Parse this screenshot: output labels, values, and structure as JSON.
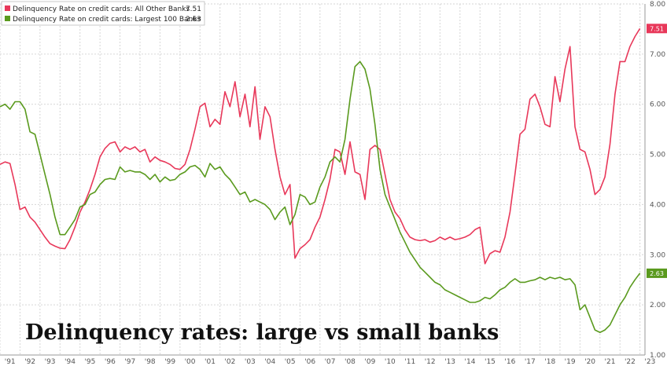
{
  "chart_data": {
    "type": "line",
    "title": "Delinquency rates: large vs small banks",
    "y_axis": {
      "range": [
        1.0,
        8.0
      ],
      "ticks": [
        "1.00",
        "2.00",
        "3.00",
        "4.00",
        "5.00",
        "6.00",
        "7.00",
        "8.00"
      ],
      "position": "right"
    },
    "x_axis": {
      "range": [
        1991.0,
        2023.25
      ],
      "ticks": [
        "'91",
        "'92",
        "'93",
        "'94",
        "'95",
        "'96",
        "'97",
        "'98",
        "'99",
        "'00",
        "'01",
        "'02",
        "'03",
        "'04",
        "'05",
        "'06",
        "'07",
        "'08",
        "'09",
        "'10",
        "'11",
        "'12",
        "'13",
        "'14",
        "'15",
        "'16",
        "'17",
        "'18",
        "'19",
        "'20",
        "'21",
        "'22",
        "'23"
      ]
    },
    "grid": true,
    "legend_position": "top-left",
    "series": [
      {
        "name": "Delinquency Rate on credit cards: All Other Banks",
        "last_value": "7.51",
        "color": "#e8385a",
        "points": [
          [
            1991.0,
            4.8
          ],
          [
            1991.25,
            4.85
          ],
          [
            1991.5,
            4.82
          ],
          [
            1991.75,
            4.4
          ],
          [
            1992.0,
            3.9
          ],
          [
            1992.25,
            3.95
          ],
          [
            1992.5,
            3.75
          ],
          [
            1992.75,
            3.65
          ],
          [
            1993.0,
            3.5
          ],
          [
            1993.25,
            3.35
          ],
          [
            1993.5,
            3.22
          ],
          [
            1993.75,
            3.17
          ],
          [
            1994.0,
            3.13
          ],
          [
            1994.25,
            3.12
          ],
          [
            1994.5,
            3.3
          ],
          [
            1994.75,
            3.55
          ],
          [
            1995.0,
            3.85
          ],
          [
            1995.25,
            4.05
          ],
          [
            1995.5,
            4.3
          ],
          [
            1995.75,
            4.6
          ],
          [
            1996.0,
            4.95
          ],
          [
            1996.25,
            5.12
          ],
          [
            1996.5,
            5.22
          ],
          [
            1996.75,
            5.25
          ],
          [
            1997.0,
            5.05
          ],
          [
            1997.25,
            5.15
          ],
          [
            1997.5,
            5.1
          ],
          [
            1997.75,
            5.15
          ],
          [
            1998.0,
            5.05
          ],
          [
            1998.25,
            5.1
          ],
          [
            1998.5,
            4.85
          ],
          [
            1998.75,
            4.95
          ],
          [
            1999.0,
            4.88
          ],
          [
            1999.25,
            4.85
          ],
          [
            1999.5,
            4.8
          ],
          [
            1999.75,
            4.72
          ],
          [
            2000.0,
            4.7
          ],
          [
            2000.25,
            4.8
          ],
          [
            2000.5,
            5.1
          ],
          [
            2000.75,
            5.5
          ],
          [
            2001.0,
            5.95
          ],
          [
            2001.25,
            6.02
          ],
          [
            2001.5,
            5.55
          ],
          [
            2001.75,
            5.7
          ],
          [
            2002.0,
            5.6
          ],
          [
            2002.25,
            6.25
          ],
          [
            2002.5,
            5.95
          ],
          [
            2002.75,
            6.45
          ],
          [
            2003.0,
            5.75
          ],
          [
            2003.25,
            6.2
          ],
          [
            2003.5,
            5.55
          ],
          [
            2003.75,
            6.35
          ],
          [
            2004.0,
            5.3
          ],
          [
            2004.25,
            5.95
          ],
          [
            2004.5,
            5.75
          ],
          [
            2004.75,
            5.1
          ],
          [
            2005.0,
            4.55
          ],
          [
            2005.25,
            4.2
          ],
          [
            2005.5,
            4.4
          ],
          [
            2005.75,
            2.93
          ],
          [
            2006.0,
            3.12
          ],
          [
            2006.25,
            3.2
          ],
          [
            2006.5,
            3.3
          ],
          [
            2006.75,
            3.55
          ],
          [
            2007.0,
            3.75
          ],
          [
            2007.25,
            4.1
          ],
          [
            2007.5,
            4.5
          ],
          [
            2007.75,
            5.1
          ],
          [
            2008.0,
            5.05
          ],
          [
            2008.25,
            4.6
          ],
          [
            2008.5,
            5.25
          ],
          [
            2008.75,
            4.65
          ],
          [
            2009.0,
            4.6
          ],
          [
            2009.25,
            4.1
          ],
          [
            2009.5,
            5.1
          ],
          [
            2009.75,
            5.18
          ],
          [
            2010.0,
            5.1
          ],
          [
            2010.25,
            4.6
          ],
          [
            2010.5,
            4.1
          ],
          [
            2010.75,
            3.85
          ],
          [
            2011.0,
            3.72
          ],
          [
            2011.25,
            3.5
          ],
          [
            2011.5,
            3.35
          ],
          [
            2011.75,
            3.3
          ],
          [
            2012.0,
            3.28
          ],
          [
            2012.25,
            3.3
          ],
          [
            2012.5,
            3.25
          ],
          [
            2012.75,
            3.28
          ],
          [
            2013.0,
            3.35
          ],
          [
            2013.25,
            3.3
          ],
          [
            2013.5,
            3.35
          ],
          [
            2013.75,
            3.3
          ],
          [
            2014.0,
            3.32
          ],
          [
            2014.25,
            3.35
          ],
          [
            2014.5,
            3.4
          ],
          [
            2014.75,
            3.5
          ],
          [
            2015.0,
            3.55
          ],
          [
            2015.25,
            2.82
          ],
          [
            2015.5,
            3.02
          ],
          [
            2015.75,
            3.08
          ],
          [
            2016.0,
            3.05
          ],
          [
            2016.25,
            3.35
          ],
          [
            2016.5,
            3.85
          ],
          [
            2016.75,
            4.6
          ],
          [
            2017.0,
            5.4
          ],
          [
            2017.25,
            5.5
          ],
          [
            2017.5,
            6.1
          ],
          [
            2017.75,
            6.2
          ],
          [
            2018.0,
            5.95
          ],
          [
            2018.25,
            5.6
          ],
          [
            2018.5,
            5.55
          ],
          [
            2018.75,
            6.55
          ],
          [
            2019.0,
            6.05
          ],
          [
            2019.25,
            6.7
          ],
          [
            2019.5,
            7.15
          ],
          [
            2019.75,
            5.55
          ],
          [
            2020.0,
            5.1
          ],
          [
            2020.25,
            5.05
          ],
          [
            2020.5,
            4.7
          ],
          [
            2020.75,
            4.2
          ],
          [
            2021.0,
            4.3
          ],
          [
            2021.25,
            4.55
          ],
          [
            2021.5,
            5.2
          ],
          [
            2021.75,
            6.2
          ],
          [
            2022.0,
            6.85
          ],
          [
            2022.25,
            6.85
          ],
          [
            2022.5,
            7.15
          ],
          [
            2022.75,
            7.35
          ],
          [
            2023.0,
            7.51
          ]
        ]
      },
      {
        "name": "Delinquency Rate on credit cards: Largest 100 Banks",
        "last_value": "2.63",
        "color": "#5a9a1e",
        "points": [
          [
            1991.0,
            5.95
          ],
          [
            1991.25,
            6.0
          ],
          [
            1991.5,
            5.9
          ],
          [
            1991.75,
            6.05
          ],
          [
            1992.0,
            6.05
          ],
          [
            1992.25,
            5.9
          ],
          [
            1992.5,
            5.45
          ],
          [
            1992.75,
            5.4
          ],
          [
            1993.0,
            5.0
          ],
          [
            1993.25,
            4.6
          ],
          [
            1993.5,
            4.2
          ],
          [
            1993.75,
            3.75
          ],
          [
            1994.0,
            3.4
          ],
          [
            1994.25,
            3.4
          ],
          [
            1994.5,
            3.55
          ],
          [
            1994.75,
            3.7
          ],
          [
            1995.0,
            3.95
          ],
          [
            1995.25,
            4.0
          ],
          [
            1995.5,
            4.2
          ],
          [
            1995.75,
            4.25
          ],
          [
            1996.0,
            4.4
          ],
          [
            1996.25,
            4.5
          ],
          [
            1996.5,
            4.52
          ],
          [
            1996.75,
            4.5
          ],
          [
            1997.0,
            4.75
          ],
          [
            1997.25,
            4.65
          ],
          [
            1997.5,
            4.68
          ],
          [
            1997.75,
            4.65
          ],
          [
            1998.0,
            4.65
          ],
          [
            1998.25,
            4.6
          ],
          [
            1998.5,
            4.5
          ],
          [
            1998.75,
            4.6
          ],
          [
            1999.0,
            4.45
          ],
          [
            1999.25,
            4.55
          ],
          [
            1999.5,
            4.48
          ],
          [
            1999.75,
            4.5
          ],
          [
            2000.0,
            4.6
          ],
          [
            2000.25,
            4.65
          ],
          [
            2000.5,
            4.75
          ],
          [
            2000.75,
            4.78
          ],
          [
            2001.0,
            4.7
          ],
          [
            2001.25,
            4.55
          ],
          [
            2001.5,
            4.82
          ],
          [
            2001.75,
            4.7
          ],
          [
            2002.0,
            4.75
          ],
          [
            2002.25,
            4.6
          ],
          [
            2002.5,
            4.5
          ],
          [
            2002.75,
            4.35
          ],
          [
            2003.0,
            4.2
          ],
          [
            2003.25,
            4.25
          ],
          [
            2003.5,
            4.05
          ],
          [
            2003.75,
            4.1
          ],
          [
            2004.0,
            4.05
          ],
          [
            2004.25,
            4.0
          ],
          [
            2004.5,
            3.9
          ],
          [
            2004.75,
            3.7
          ],
          [
            2005.0,
            3.85
          ],
          [
            2005.25,
            3.95
          ],
          [
            2005.5,
            3.6
          ],
          [
            2005.75,
            3.8
          ],
          [
            2006.0,
            4.2
          ],
          [
            2006.25,
            4.15
          ],
          [
            2006.5,
            4.0
          ],
          [
            2006.75,
            4.05
          ],
          [
            2007.0,
            4.35
          ],
          [
            2007.25,
            4.55
          ],
          [
            2007.5,
            4.85
          ],
          [
            2007.75,
            4.95
          ],
          [
            2008.0,
            4.85
          ],
          [
            2008.25,
            5.3
          ],
          [
            2008.5,
            6.1
          ],
          [
            2008.75,
            6.75
          ],
          [
            2009.0,
            6.85
          ],
          [
            2009.25,
            6.7
          ],
          [
            2009.5,
            6.3
          ],
          [
            2009.75,
            5.6
          ],
          [
            2010.0,
            4.7
          ],
          [
            2010.25,
            4.2
          ],
          [
            2010.5,
            3.95
          ],
          [
            2010.75,
            3.7
          ],
          [
            2011.0,
            3.45
          ],
          [
            2011.25,
            3.25
          ],
          [
            2011.5,
            3.05
          ],
          [
            2011.75,
            2.9
          ],
          [
            2012.0,
            2.75
          ],
          [
            2012.25,
            2.65
          ],
          [
            2012.5,
            2.55
          ],
          [
            2012.75,
            2.45
          ],
          [
            2013.0,
            2.4
          ],
          [
            2013.25,
            2.3
          ],
          [
            2013.5,
            2.25
          ],
          [
            2013.75,
            2.2
          ],
          [
            2014.0,
            2.15
          ],
          [
            2014.25,
            2.1
          ],
          [
            2014.5,
            2.05
          ],
          [
            2014.75,
            2.05
          ],
          [
            2015.0,
            2.08
          ],
          [
            2015.25,
            2.15
          ],
          [
            2015.5,
            2.12
          ],
          [
            2015.75,
            2.2
          ],
          [
            2016.0,
            2.3
          ],
          [
            2016.25,
            2.35
          ],
          [
            2016.5,
            2.45
          ],
          [
            2016.75,
            2.52
          ],
          [
            2017.0,
            2.45
          ],
          [
            2017.25,
            2.45
          ],
          [
            2017.5,
            2.48
          ],
          [
            2017.75,
            2.5
          ],
          [
            2018.0,
            2.55
          ],
          [
            2018.25,
            2.5
          ],
          [
            2018.5,
            2.55
          ],
          [
            2018.75,
            2.52
          ],
          [
            2019.0,
            2.55
          ],
          [
            2019.25,
            2.5
          ],
          [
            2019.5,
            2.52
          ],
          [
            2019.75,
            2.4
          ],
          [
            2020.0,
            1.9
          ],
          [
            2020.25,
            2.0
          ],
          [
            2020.5,
            1.75
          ],
          [
            2020.75,
            1.5
          ],
          [
            2021.0,
            1.45
          ],
          [
            2021.25,
            1.5
          ],
          [
            2021.5,
            1.6
          ],
          [
            2021.75,
            1.8
          ],
          [
            2022.0,
            2.0
          ],
          [
            2022.25,
            2.15
          ],
          [
            2022.5,
            2.35
          ],
          [
            2022.75,
            2.5
          ],
          [
            2023.0,
            2.63
          ]
        ]
      }
    ]
  }
}
